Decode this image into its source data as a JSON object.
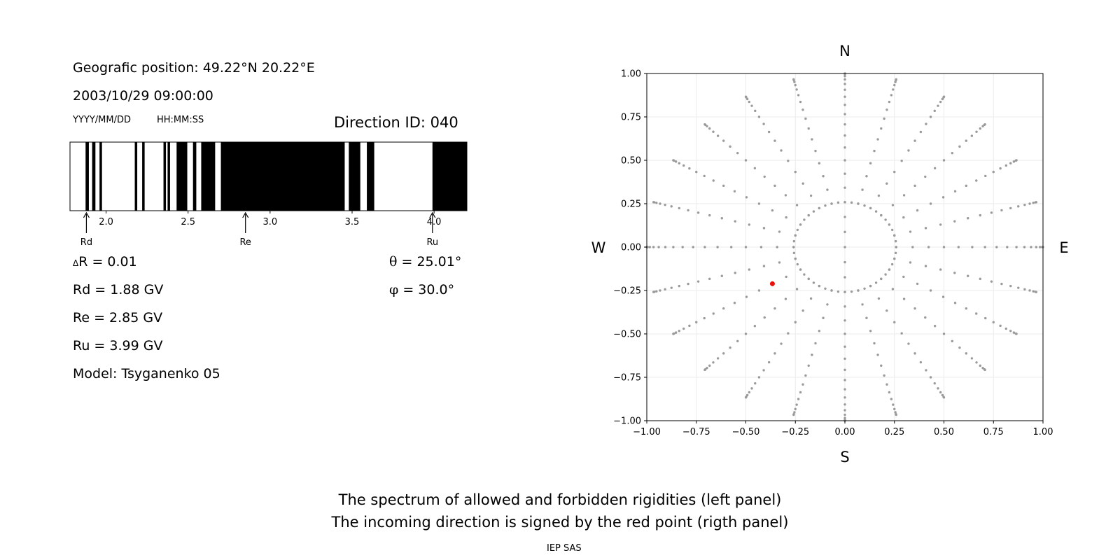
{
  "info": {
    "position": "Geografic position: 49.22°N 20.22°E",
    "datetime": "2003/10/29 09:00:00",
    "date_format": "YYYY/MM/DD",
    "time_format": "HH:MM:SS",
    "direction_id": "Direction ID: 040",
    "delta_r": "R = 0.01",
    "delta_symbol": "Δ",
    "rd": "Rd = 1.88 GV",
    "re": "Re = 2.85 GV",
    "ru": "Ru = 3.99 GV",
    "model": "Model: Tsyganenko 05",
    "theta_symbol": "θ",
    "theta": " = 25.01°",
    "phi_symbol": "φ",
    "phi": " = 30.0°"
  },
  "captions": {
    "line1": "The spectrum of allowed and forbidden rigidities (left panel)",
    "line2": "The incoming direction is signed by the red point (rigth panel)",
    "credit": "IEP SAS"
  },
  "chart_data": [
    {
      "type": "spectrum",
      "x_range": [
        1.78,
        4.2
      ],
      "ticks": [
        2.0,
        2.5,
        3.0,
        3.5,
        4.0
      ],
      "tick_labels": [
        "2.0",
        "2.5",
        "3.0",
        "3.5",
        "4.0"
      ],
      "forbidden_bands": [
        [
          1.875,
          1.895
        ],
        [
          1.915,
          1.935
        ],
        [
          1.96,
          1.975
        ],
        [
          2.175,
          2.19
        ],
        [
          2.22,
          2.235
        ],
        [
          2.35,
          2.365
        ],
        [
          2.375,
          2.39
        ],
        [
          2.43,
          2.495
        ],
        [
          2.53,
          2.55
        ],
        [
          2.58,
          2.665
        ],
        [
          2.7,
          3.455
        ],
        [
          3.48,
          3.55
        ],
        [
          3.59,
          3.635
        ],
        [
          3.99,
          4.2
        ]
      ],
      "markers": [
        {
          "label": "Rd",
          "value": 1.88
        },
        {
          "label": "Re",
          "value": 2.85
        },
        {
          "label": "Ru",
          "value": 3.99
        }
      ]
    },
    {
      "type": "scatter",
      "xlim": [
        -1.0,
        1.0
      ],
      "ylim": [
        -1.0,
        1.0
      ],
      "ticks": [
        -1.0,
        -0.75,
        -0.5,
        -0.25,
        0.0,
        0.25,
        0.5,
        0.75,
        1.0
      ],
      "tick_labels": [
        "−1.00",
        "−0.75",
        "−0.50",
        "−0.25",
        "0.00",
        "0.25",
        "0.50",
        "0.75",
        "1.00"
      ],
      "grid": true,
      "compass": {
        "top": "N",
        "bottom": "S",
        "left": "W",
        "right": "E"
      },
      "grid_points": {
        "description_rule": "polar grid: zenith angles 0-90 deg in 5 deg steps, azimuths 0-345 deg in 15 deg steps, r = sin(zenith)",
        "zenith_step_deg": 5,
        "zenith_max_deg": 90,
        "azimuth_step_deg": 15,
        "inner_ring_zenith_deg": 15,
        "color": "#9a9a9a"
      },
      "highlight": {
        "x": -0.366,
        "y": -0.211,
        "color": "#e8100a"
      }
    }
  ]
}
